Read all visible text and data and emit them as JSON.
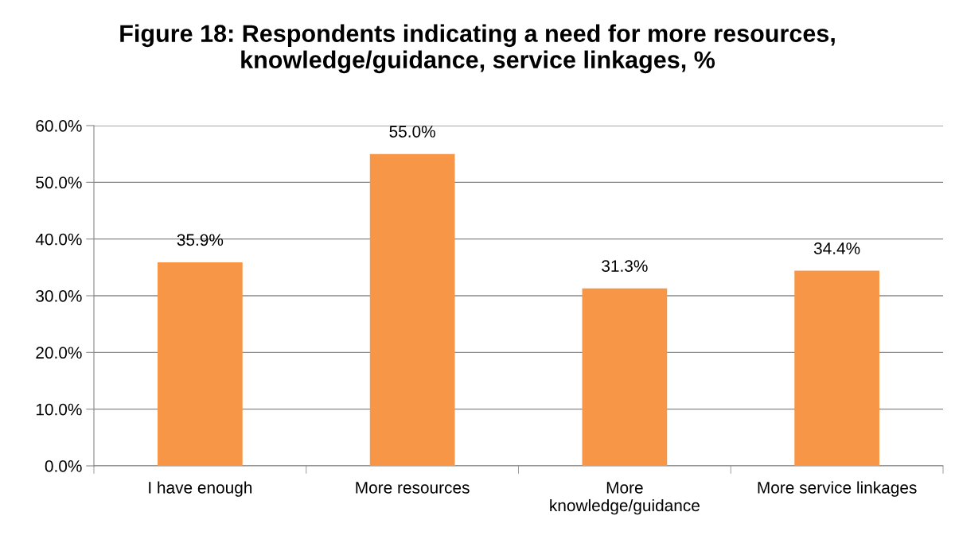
{
  "chart_data": {
    "type": "bar",
    "title": "Figure 18: Respondents indicating a need for more resources, knowledge/guidance, service linkages, %",
    "categories": [
      "I have enough",
      "More resources",
      "More\nknowledge/guidance",
      "More service linkages"
    ],
    "values": [
      35.9,
      55.0,
      31.3,
      34.4
    ],
    "value_labels": [
      "35.9%",
      "55.0%",
      "31.3%",
      "34.4%"
    ],
    "color": "#f79646",
    "ylim": [
      0,
      60
    ],
    "yticks": [
      {
        "value": 0,
        "label": "0.0%"
      },
      {
        "value": 10,
        "label": "10.0%"
      },
      {
        "value": 20,
        "label": "20.0%"
      },
      {
        "value": 30,
        "label": "30.0%"
      },
      {
        "value": 40,
        "label": "40.0%"
      },
      {
        "value": 50,
        "label": "50.0%"
      },
      {
        "value": 60,
        "label": "60.0%"
      }
    ],
    "grid": "y",
    "legend": false
  }
}
